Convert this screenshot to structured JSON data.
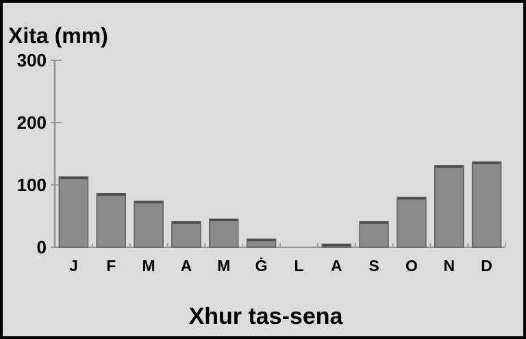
{
  "chart_data": {
    "type": "bar",
    "title": "Xita (mm)",
    "xlabel": "Xhur tas-sena",
    "ylabel": "",
    "ylim": [
      0,
      300
    ],
    "yticks": [
      "0",
      "100",
      "200",
      "300"
    ],
    "categories": [
      "J",
      "F",
      "M",
      "A",
      "M",
      "Ġ",
      "L",
      "A",
      "S",
      "O",
      "N",
      "D"
    ],
    "values": [
      113,
      86,
      74,
      41,
      45,
      13,
      0,
      5,
      41,
      80,
      131,
      137
    ],
    "grid": false,
    "legend": "none",
    "bar_color": "#8a8a8a",
    "background_color": "#dcdcdc"
  }
}
